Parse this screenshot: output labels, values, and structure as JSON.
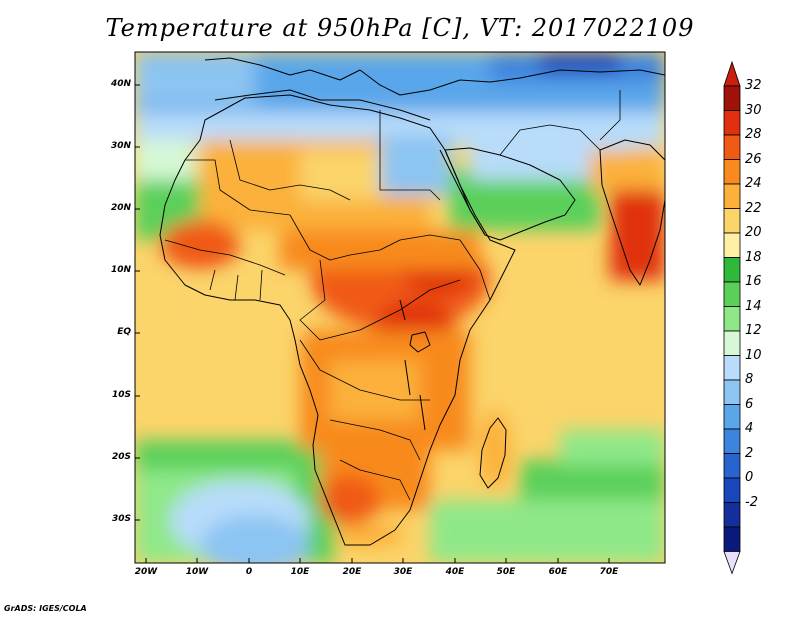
{
  "title": "Temperature at 950hPa [C], VT: 2017022109",
  "credit": "GrADS: IGES/COLA",
  "map": {
    "lon_labels": [
      "20W",
      "10W",
      "0",
      "10E",
      "20E",
      "30E",
      "40E",
      "50E",
      "60E",
      "70E"
    ],
    "lat_labels": [
      "40N",
      "30N",
      "20N",
      "10N",
      "EQ",
      "10S",
      "20S",
      "30S"
    ],
    "lon_range": [
      -23,
      80
    ],
    "lat_range": [
      -37,
      46
    ]
  },
  "colorbar": {
    "labels": [
      "32",
      "30",
      "28",
      "26",
      "24",
      "22",
      "20",
      "18",
      "16",
      "14",
      "12",
      "10",
      "8",
      "6",
      "4",
      "2",
      "0",
      "-2"
    ],
    "colors": [
      "#a01208",
      "#e03010",
      "#f05a14",
      "#f88a1e",
      "#fbb13a",
      "#fbd46a",
      "#fdf0a6",
      "#2fb83a",
      "#5ad05a",
      "#8fe888",
      "#d6f8d6",
      "#b8dcfa",
      "#8cc4f2",
      "#5aa6ea",
      "#3c84de",
      "#2864ce",
      "#1a46bc",
      "#142e9c",
      "#0a1a7a"
    ],
    "min_color": "#e6e0fa",
    "max_color": "#c8200c"
  }
}
